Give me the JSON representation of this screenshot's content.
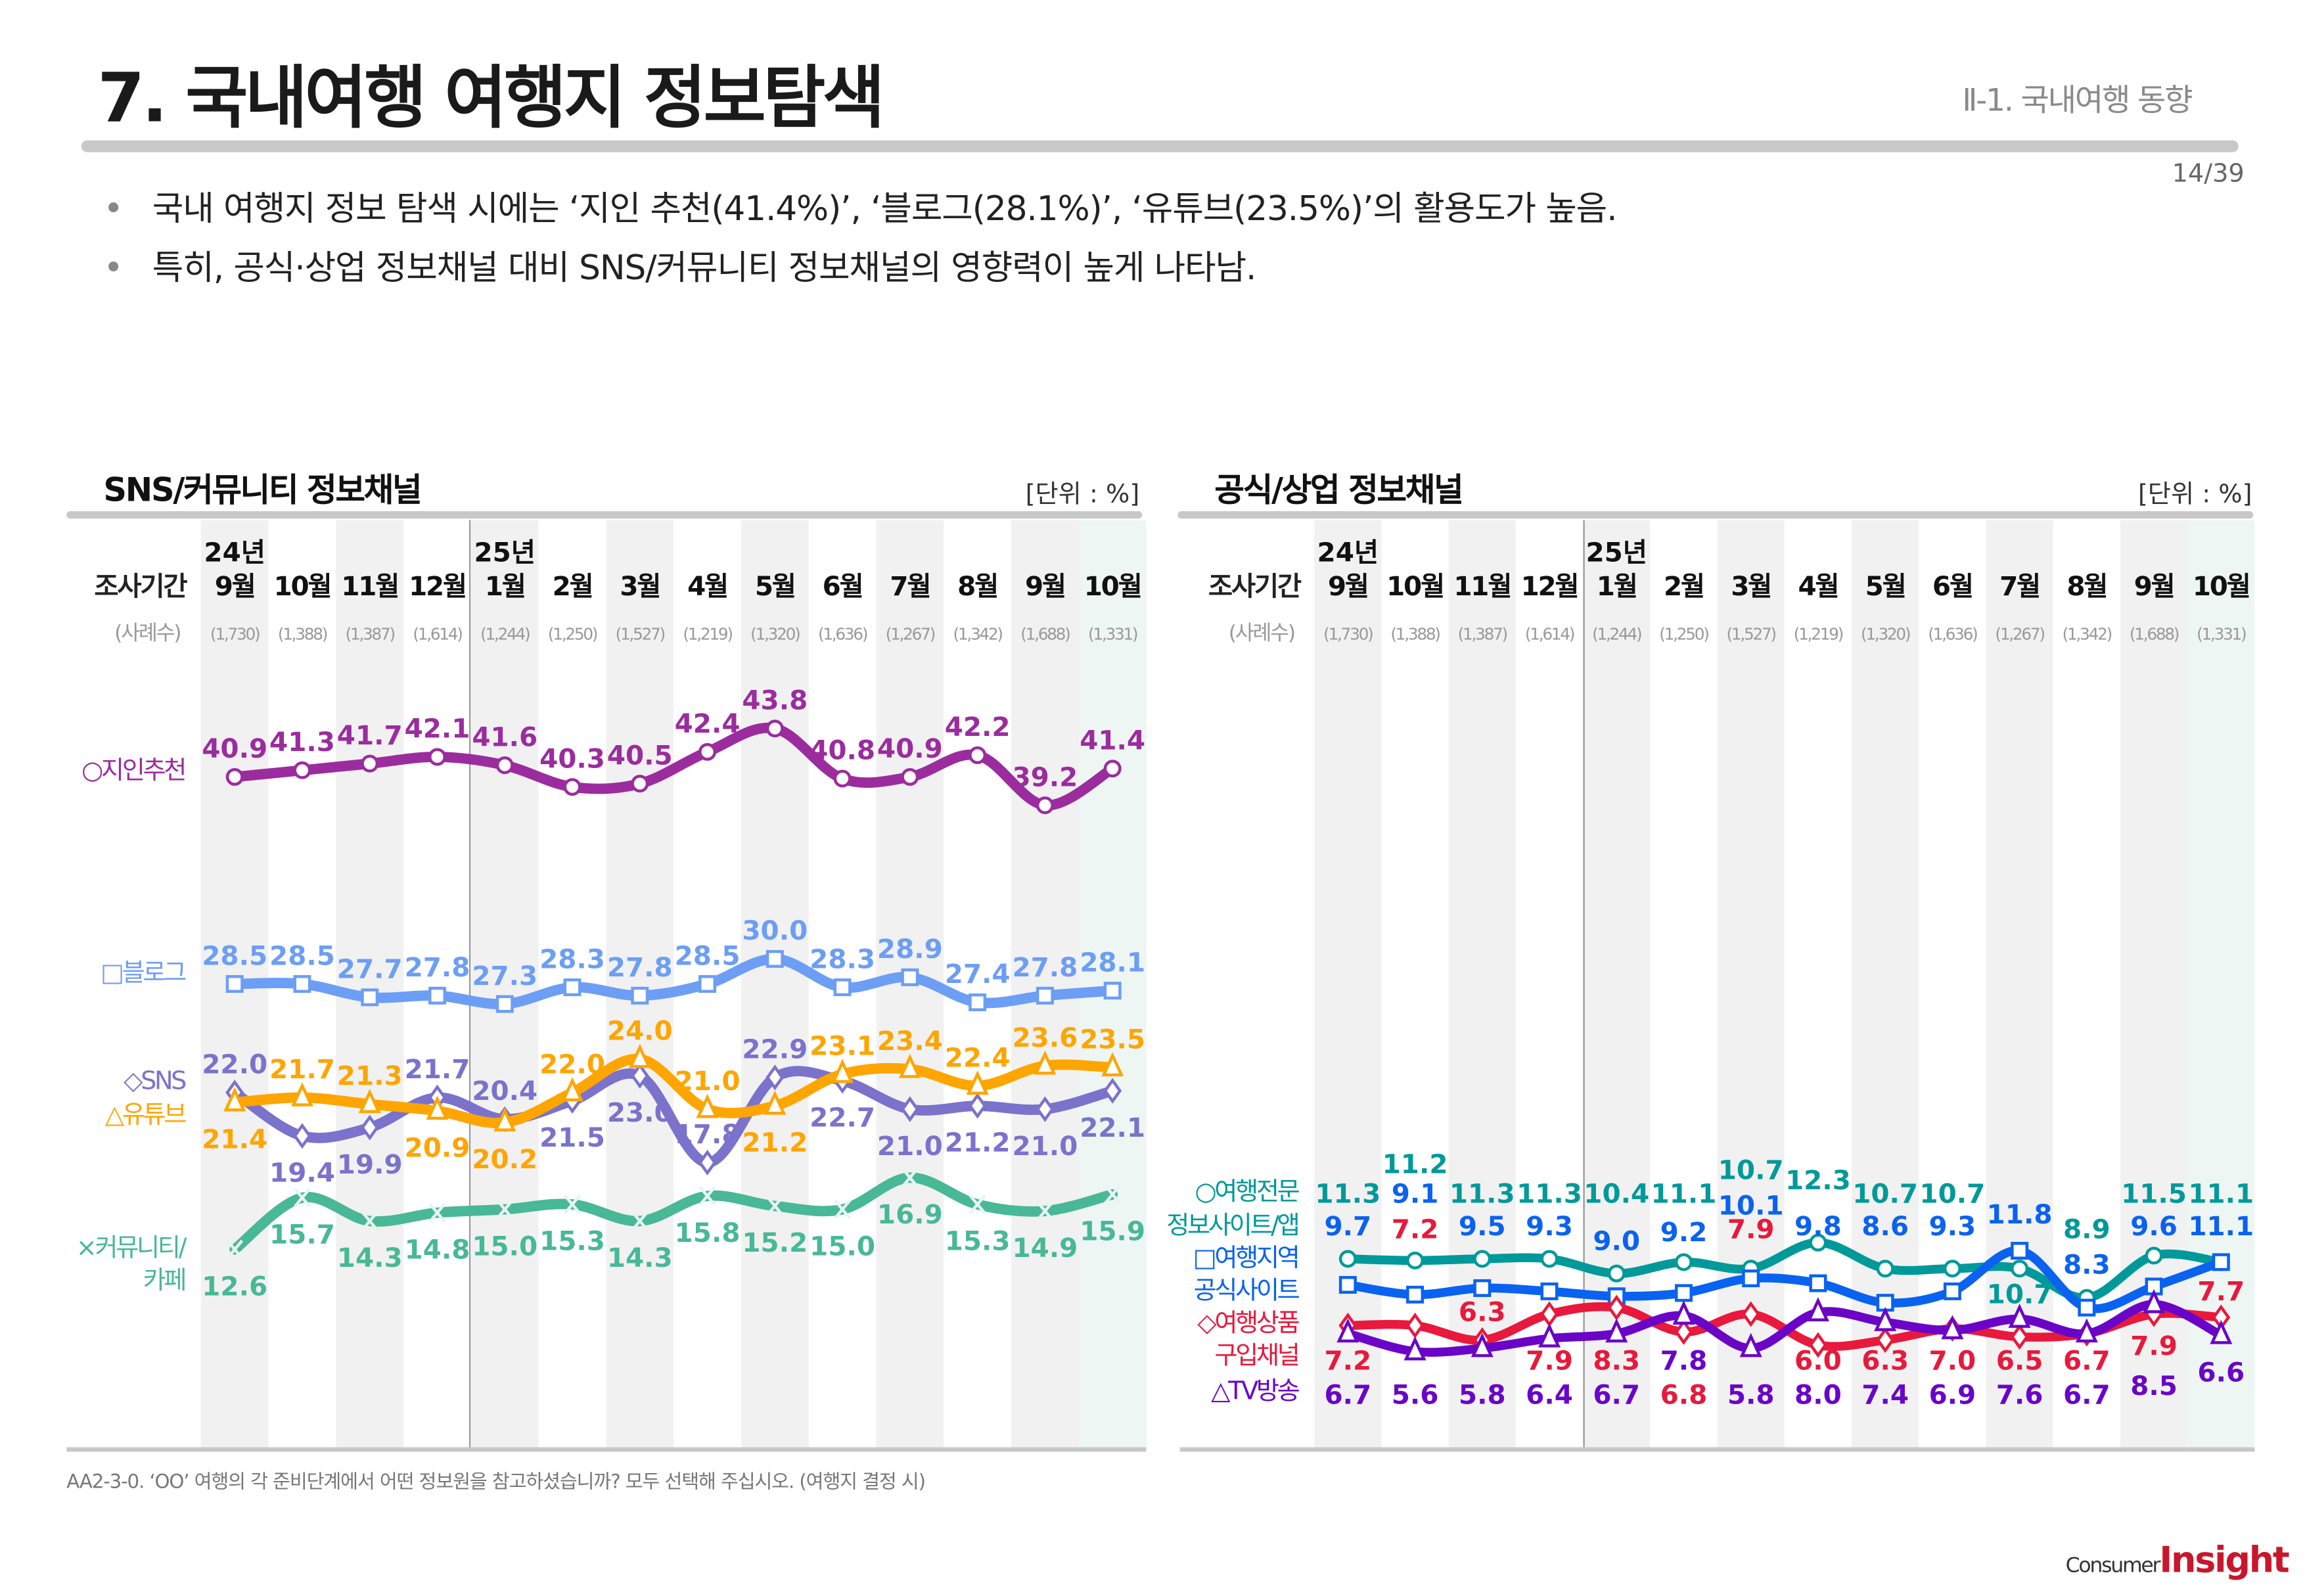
{
  "header": {
    "title": "7. 국내여행 여행지 정보탐색",
    "section": "Ⅱ-1. 국내여행 동향",
    "page": "14/39"
  },
  "bullets": [
    "국내 여행지 정보 탐색 시에는 ‘지인 추천(41.4%)’, ‘블로그(28.1%)’, ‘유튜브(23.5%)’의 활용도가 높음.",
    "특히, 공식·상업 정보채널 대비 SNS/커뮤니티 정보채널의 영향력이 높게 나타남."
  ],
  "axis": {
    "row_label": "조사기간",
    "sample_label": "(사례수)",
    "years": [
      "24년",
      "25년"
    ],
    "months": [
      "9월",
      "10월",
      "11월",
      "12월",
      "1월",
      "2월",
      "3월",
      "4월",
      "5월",
      "6월",
      "7월",
      "8월",
      "9월",
      "10월"
    ],
    "samples": [
      "(1,730)",
      "(1,388)",
      "(1,387)",
      "(1,614)",
      "(1,244)",
      "(1,250)",
      "(1,527)",
      "(1,219)",
      "(1,320)",
      "(1,636)",
      "(1,267)",
      "(1,342)",
      "(1,688)",
      "(1,331)"
    ]
  },
  "footer": "AA2-3-0. ‘OO’ 여행의 각 준비단계에서 어떤 정보원을 참고하셨습니까? 모두 선택해 주십시오. (여행지 결정 시)",
  "logo": {
    "text1": "Consumer",
    "text2": "Insight"
  },
  "chart_data": [
    {
      "type": "line",
      "title": "SNS/커뮤니티 정보채널",
      "unit": "[단위 : %]",
      "categories": [
        "24년 9월",
        "10월",
        "11월",
        "12월",
        "25년 1월",
        "2월",
        "3월",
        "4월",
        "5월",
        "6월",
        "7월",
        "8월",
        "9월",
        "10월"
      ],
      "grid": false,
      "legend": "left",
      "series": [
        {
          "name": "지인추천",
          "legend": [
            "○지인추천"
          ],
          "color": "#9b2c9e",
          "marker": "circle",
          "values": [
            40.9,
            41.3,
            41.7,
            42.1,
            41.6,
            40.3,
            40.5,
            42.4,
            43.8,
            40.8,
            40.9,
            42.2,
            39.2,
            41.4
          ]
        },
        {
          "name": "블로그",
          "legend": [
            "□블로그"
          ],
          "color": "#6d9ef5",
          "marker": "square",
          "values": [
            28.5,
            28.5,
            27.7,
            27.8,
            27.3,
            28.3,
            27.8,
            28.5,
            30.0,
            28.3,
            28.9,
            27.4,
            27.8,
            28.1
          ]
        },
        {
          "name": "SNS",
          "legend": [
            "◇SNS"
          ],
          "color": "#7b72cc",
          "marker": "diamond",
          "values": [
            22.0,
            19.4,
            19.9,
            21.7,
            20.4,
            21.5,
            23.0,
            17.8,
            22.9,
            22.7,
            21.0,
            21.2,
            21.0,
            22.1
          ]
        },
        {
          "name": "유튜브",
          "legend": [
            "△유튜브"
          ],
          "color": "#ffa500",
          "marker": "triangle",
          "values": [
            21.4,
            21.7,
            21.3,
            20.9,
            20.2,
            22.0,
            24.0,
            21.0,
            21.2,
            23.1,
            23.4,
            22.4,
            23.6,
            23.5
          ]
        },
        {
          "name": "커뮤니티/카페",
          "legend": [
            "×커뮤니티/",
            "카페"
          ],
          "color": "#48b896",
          "marker": "x",
          "values": [
            12.6,
            15.7,
            14.3,
            14.8,
            15.0,
            15.3,
            14.3,
            15.8,
            15.2,
            15.0,
            16.9,
            15.3,
            14.9,
            15.9
          ]
        }
      ]
    },
    {
      "type": "line",
      "title": "공식/상업 정보채널",
      "unit": "[단위 : %]",
      "categories": [
        "24년 9월",
        "10월",
        "11월",
        "12월",
        "25년 1월",
        "2월",
        "3월",
        "4월",
        "5월",
        "6월",
        "7월",
        "8월",
        "9월",
        "10월"
      ],
      "grid": false,
      "legend": "left",
      "series": [
        {
          "name": "여행전문 정보사이트/앱",
          "legend": [
            "○여행전문",
            "정보사이트/앱"
          ],
          "color": "#00999a",
          "marker": "circle",
          "values": [
            11.3,
            11.2,
            11.3,
            11.3,
            10.4,
            11.1,
            10.7,
            12.3,
            10.7,
            10.7,
            10.7,
            8.9,
            11.5,
            11.1
          ]
        },
        {
          "name": "여행지역 공식사이트",
          "legend": [
            "□여행지역",
            "공식사이트"
          ],
          "color": "#0a62f0",
          "marker": "square",
          "values": [
            9.7,
            9.1,
            9.5,
            9.3,
            9.0,
            9.2,
            10.1,
            9.8,
            8.6,
            9.3,
            11.8,
            8.3,
            9.6,
            11.1
          ]
        },
        {
          "name": "여행상품 구입채널",
          "legend": [
            "◇여행상품",
            "구입채널"
          ],
          "color": "#e8193c",
          "marker": "diamond",
          "values": [
            7.2,
            7.2,
            6.3,
            7.9,
            8.3,
            6.8,
            7.9,
            6.0,
            6.3,
            7.0,
            6.5,
            6.7,
            7.9,
            7.7
          ]
        },
        {
          "name": "TV방송",
          "legend": [
            "△TV방송"
          ],
          "color": "#6a05c8",
          "marker": "triangle",
          "values": [
            6.7,
            5.6,
            5.8,
            6.4,
            6.7,
            7.8,
            5.8,
            8.0,
            7.4,
            6.9,
            7.6,
            6.7,
            8.5,
            6.6
          ]
        }
      ]
    }
  ]
}
